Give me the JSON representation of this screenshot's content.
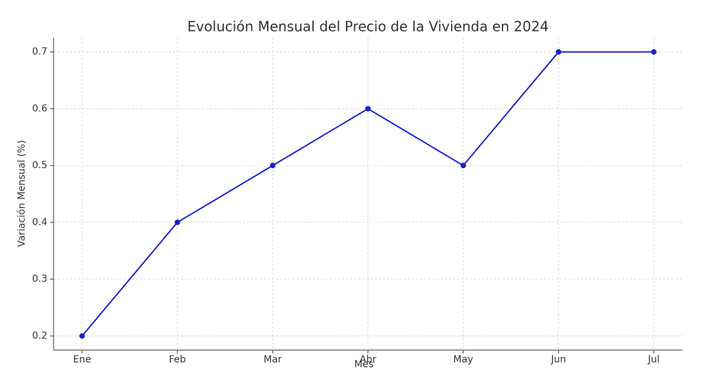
{
  "chart_data": {
    "type": "line",
    "title": "Evolución Mensual del Precio de la Vivienda en 2024",
    "xlabel": "Mes",
    "ylabel": "Variación Mensual (%)",
    "categories": [
      "Ene",
      "Feb",
      "Mar",
      "Abr",
      "May",
      "Jun",
      "Jul"
    ],
    "series": [
      {
        "name": "Variación Mensual",
        "color": "#1a22c8",
        "values": [
          0.2,
          0.4,
          0.5,
          0.6,
          0.5,
          0.7,
          0.7
        ]
      }
    ],
    "ylim": [
      0.175,
      0.725
    ],
    "yticks": [
      0.2,
      0.3,
      0.4,
      0.5,
      0.6,
      0.7
    ],
    "grid": true
  }
}
